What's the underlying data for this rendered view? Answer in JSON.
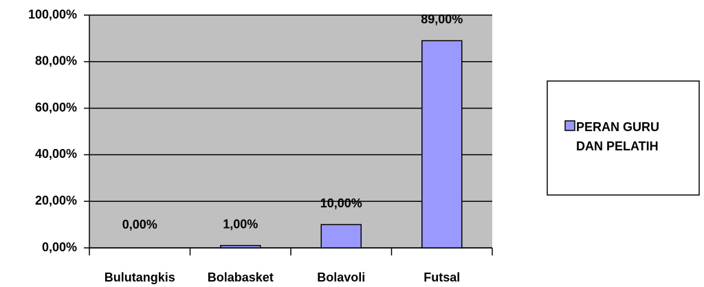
{
  "chart_data": {
    "type": "bar",
    "categories": [
      "Bulutangkis",
      "Bolabasket",
      "Bolavoli",
      "Futsal"
    ],
    "series": [
      {
        "name": "PERAN GURU DAN PELATIH",
        "color": "#9999ff",
        "values": [
          0,
          1,
          10,
          89
        ],
        "value_labels": [
          "0,00%",
          "1,00%",
          "10,00%",
          "89,00%"
        ]
      }
    ],
    "ylim": [
      0,
      100
    ],
    "yticks": [
      {
        "value": 0,
        "label": "0,00%"
      },
      {
        "value": 20,
        "label": "20,00%"
      },
      {
        "value": 40,
        "label": "40,00%"
      },
      {
        "value": 60,
        "label": "60,00%"
      },
      {
        "value": 80,
        "label": "80,00%"
      },
      {
        "value": 100,
        "label": "100,00%"
      }
    ],
    "grid": true,
    "legend": "right"
  }
}
